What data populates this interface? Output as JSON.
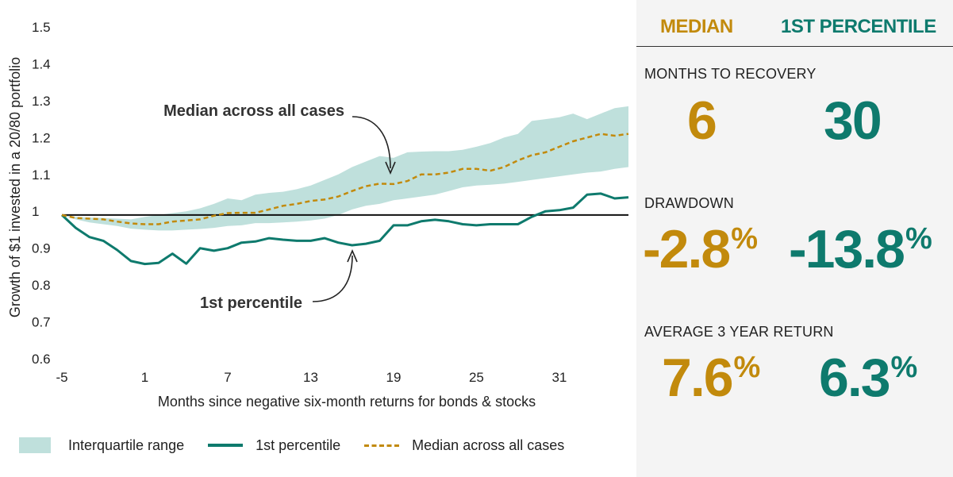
{
  "chart_data": {
    "type": "line",
    "xlabel": "Months since negative six-month returns for bonds & stocks",
    "ylabel": "Growth of $1 invested in a 20/80 portfolio",
    "xlim": [
      -5,
      36
    ],
    "ylim": [
      0.6,
      1.5
    ],
    "x_ticks": [
      "-5",
      "1",
      "7",
      "13",
      "19",
      "25",
      "31"
    ],
    "y_ticks": [
      "1.5",
      "1.4",
      "1.3",
      "1.2",
      "1.1",
      "1",
      "0.9",
      "0.8",
      "0.7",
      "0.6"
    ],
    "reference_line": 0.99,
    "x": [
      -5,
      -4,
      -3,
      -2,
      -1,
      0,
      1,
      2,
      3,
      4,
      5,
      6,
      7,
      8,
      9,
      10,
      11,
      12,
      13,
      14,
      15,
      16,
      17,
      18,
      19,
      20,
      21,
      22,
      23,
      24,
      25,
      26,
      27,
      28,
      29,
      30,
      31,
      32,
      33,
      34,
      35,
      36
    ],
    "series": [
      {
        "name": "Interquartile range",
        "style": "band",
        "color": "#bfe0dc",
        "upper": [
          0.99,
          0.985,
          0.983,
          0.982,
          0.98,
          0.978,
          0.985,
          0.99,
          0.995,
          1.0,
          1.008,
          1.02,
          1.035,
          1.03,
          1.045,
          1.05,
          1.053,
          1.06,
          1.07,
          1.085,
          1.1,
          1.12,
          1.135,
          1.15,
          1.145,
          1.16,
          1.162,
          1.163,
          1.163,
          1.167,
          1.175,
          1.185,
          1.2,
          1.21,
          1.245,
          1.25,
          1.255,
          1.265,
          1.25,
          1.265,
          1.28,
          1.285
        ],
        "lower": [
          0.99,
          0.978,
          0.97,
          0.965,
          0.96,
          0.953,
          0.95,
          0.948,
          0.948,
          0.95,
          0.952,
          0.955,
          0.96,
          0.962,
          0.968,
          0.968,
          0.97,
          0.972,
          0.975,
          0.98,
          0.99,
          1.005,
          1.015,
          1.02,
          1.03,
          1.035,
          1.04,
          1.045,
          1.055,
          1.065,
          1.07,
          1.072,
          1.075,
          1.08,
          1.085,
          1.09,
          1.095,
          1.1,
          1.105,
          1.108,
          1.115,
          1.12
        ]
      },
      {
        "name": "1st percentile",
        "style": "solid",
        "color": "#0e7a6d",
        "values": [
          0.99,
          0.955,
          0.93,
          0.92,
          0.895,
          0.865,
          0.857,
          0.86,
          0.885,
          0.858,
          0.9,
          0.893,
          0.9,
          0.915,
          0.918,
          0.927,
          0.923,
          0.92,
          0.92,
          0.927,
          0.915,
          0.908,
          0.912,
          0.92,
          0.962,
          0.962,
          0.973,
          0.977,
          0.973,
          0.965,
          0.962,
          0.965,
          0.965,
          0.965,
          0.985,
          1.0,
          1.003,
          1.01,
          1.045,
          1.048,
          1.035,
          1.038
        ]
      },
      {
        "name": "Median across all cases",
        "style": "dashed",
        "color": "#c28a0c",
        "values": [
          0.99,
          0.982,
          0.98,
          0.978,
          0.972,
          0.967,
          0.965,
          0.965,
          0.972,
          0.975,
          0.978,
          0.988,
          0.995,
          0.996,
          0.996,
          1.005,
          1.015,
          1.02,
          1.028,
          1.032,
          1.04,
          1.055,
          1.068,
          1.075,
          1.074,
          1.082,
          1.1,
          1.1,
          1.105,
          1.115,
          1.115,
          1.11,
          1.12,
          1.138,
          1.152,
          1.16,
          1.175,
          1.19,
          1.2,
          1.21,
          1.205,
          1.21
        ]
      }
    ],
    "annotations": [
      {
        "text": "Median across all cases"
      },
      {
        "text": "1st percentile"
      }
    ]
  },
  "legend": {
    "band": "Interquartile range",
    "solid": "1st percentile",
    "dashed": "Median across all cases"
  },
  "stats_panel": {
    "columns": {
      "median": "MEDIAN",
      "percentile": "1ST PERCENTILE"
    },
    "months_to_recovery": {
      "title": "MONTHS TO RECOVERY",
      "median": "6",
      "percentile": "30"
    },
    "drawdown": {
      "title": "DRAWDOWN",
      "median": "-2.8",
      "percentile": "-13.8",
      "unit": "%"
    },
    "average_3yr_return": {
      "title": "AVERAGE 3 YEAR RETURN",
      "median": "7.6",
      "percentile": "6.3",
      "unit": "%"
    },
    "colors": {
      "median": "#c28a0c",
      "percentile": "#0e7a6d"
    }
  }
}
